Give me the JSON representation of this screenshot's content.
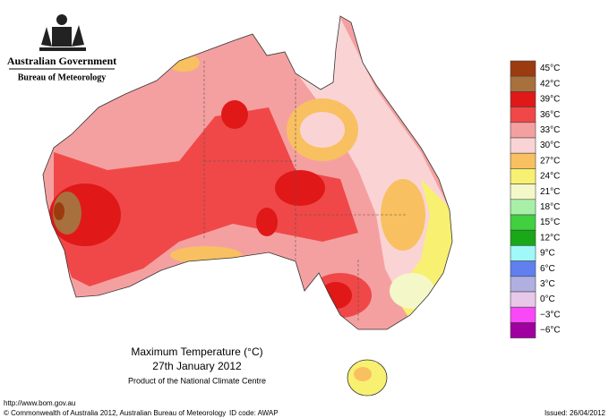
{
  "header": {
    "government": "Australian Government",
    "agency": "Bureau of Meteorology"
  },
  "title": {
    "line1": "Maximum Temperature (°C)",
    "line2": "27th January 2012",
    "line3": "Product of the National Climate Centre"
  },
  "legend": [
    {
      "label": "45°C",
      "color": "#9c3b10"
    },
    {
      "label": "42°C",
      "color": "#a8703c"
    },
    {
      "label": "39°C",
      "color": "#e01818"
    },
    {
      "label": "36°C",
      "color": "#f04848"
    },
    {
      "label": "33°C",
      "color": "#f5a0a0"
    },
    {
      "label": "30°C",
      "color": "#fad4d4"
    },
    {
      "label": "27°C",
      "color": "#f8c060"
    },
    {
      "label": "24°C",
      "color": "#f8f070"
    },
    {
      "label": "21°C",
      "color": "#f4f8c8"
    },
    {
      "label": "18°C",
      "color": "#a8f0a8"
    },
    {
      "label": "15°C",
      "color": "#40d040"
    },
    {
      "label": "12°C",
      "color": "#18a818"
    },
    {
      "label": "9°C",
      "color": "#a0f8f8"
    },
    {
      "label": "6°C",
      "color": "#6080f0"
    },
    {
      "label": "3°C",
      "color": "#b0b0e0"
    },
    {
      "label": "0°C",
      "color": "#e8c8e8"
    },
    {
      "label": "−3°C",
      "color": "#f848f8"
    },
    {
      "label": "−6°C",
      "color": "#a000a0"
    }
  ],
  "footer": {
    "url": "http://www.bom.gov.au",
    "copyright": "© Commonwealth of Australia 2012, Australian Bureau of Meteorology",
    "id_code": "ID code: AWAP",
    "issued": "Issued: 26/04/2012"
  }
}
